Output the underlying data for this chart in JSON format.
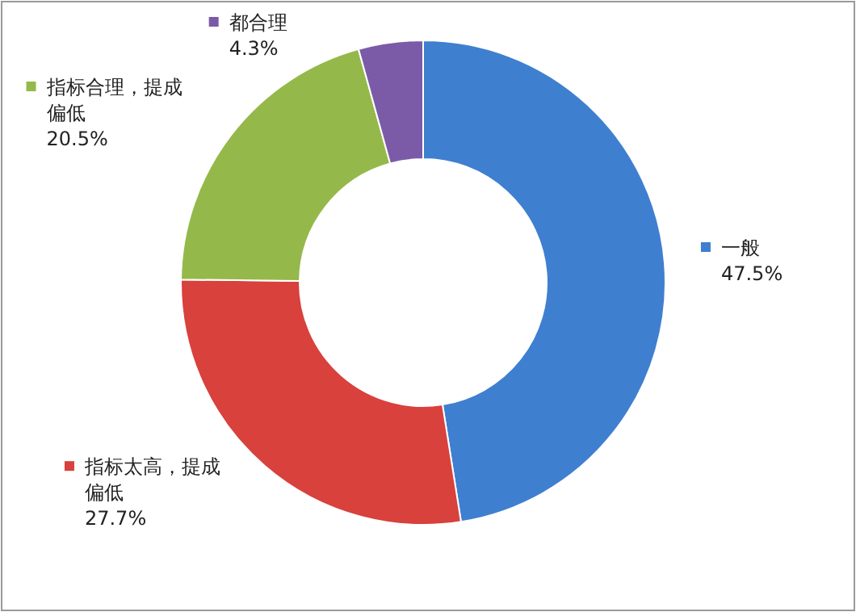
{
  "chart_data": {
    "type": "donut",
    "categories": [
      "一般",
      "指标太高，提成偏低",
      "指标合理，提成偏低",
      "都合理"
    ],
    "values": [
      47.5,
      27.7,
      20.5,
      4.3
    ],
    "colors": [
      "#3f7fd0",
      "#d8413c",
      "#94b94a",
      "#7b5ba8"
    ],
    "value_labels": [
      "47.5%",
      "27.7%",
      "20.5%",
      "4.3%"
    ],
    "legend": "top left"
  }
}
